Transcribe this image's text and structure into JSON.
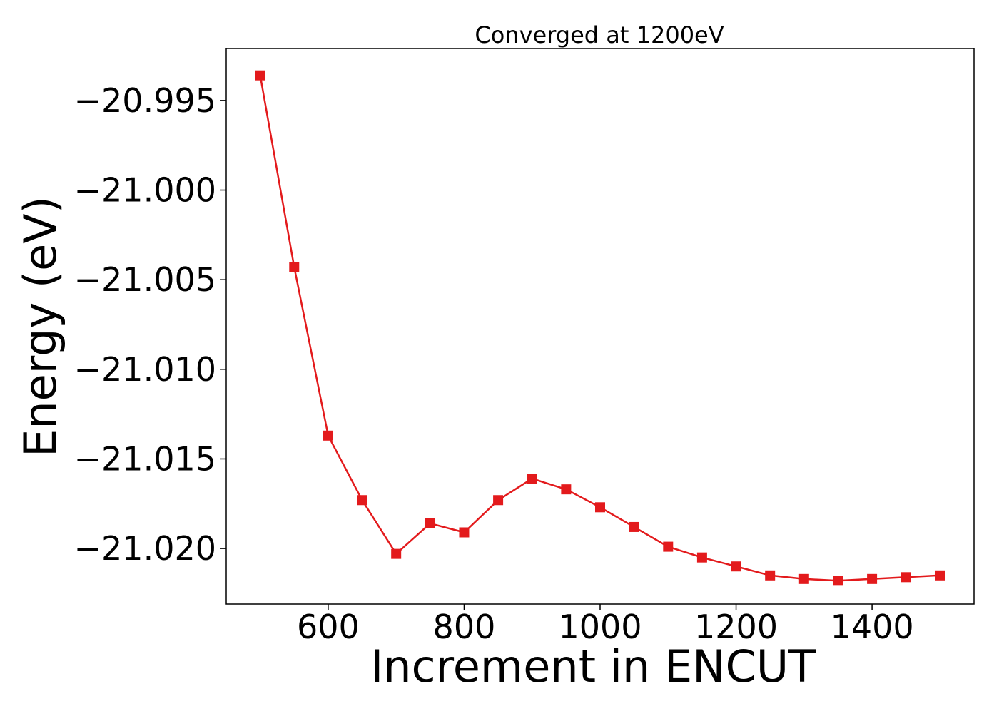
{
  "chart_data": {
    "type": "line",
    "title": "Converged at 1200eV",
    "xlabel": "Increment in ENCUT",
    "ylabel": "Energy (eV)",
    "xlim": [
      450,
      1550
    ],
    "ylim": [
      -21.0231,
      -20.9921
    ],
    "x_ticks": [
      600,
      800,
      1000,
      1200,
      1400
    ],
    "x_tick_labels": [
      "600",
      "800",
      "1000",
      "1200",
      "1400"
    ],
    "y_ticks": [
      -20.995,
      -21.0,
      -21.005,
      -21.01,
      -21.015,
      -21.02
    ],
    "y_tick_labels": [
      "−20.995",
      "−21.000",
      "−21.005",
      "−21.010",
      "−21.015",
      "−21.020"
    ],
    "grid": false,
    "legend": "none",
    "series": [
      {
        "color": "#e31a1c",
        "marker": "square",
        "x": [
          500,
          550,
          600,
          650,
          700,
          750,
          800,
          850,
          900,
          950,
          1000,
          1050,
          1100,
          1150,
          1200,
          1250,
          1300,
          1350,
          1400,
          1450,
          1500
        ],
        "y": [
          -20.9936,
          -21.0043,
          -21.0137,
          -21.0173,
          -21.0203,
          -21.0186,
          -21.0191,
          -21.0173,
          -21.0161,
          -21.0167,
          -21.0177,
          -21.0188,
          -21.0199,
          -21.0205,
          -21.021,
          -21.0215,
          -21.0217,
          -21.0218,
          -21.0217,
          -21.0216,
          -21.0215
        ]
      }
    ]
  }
}
